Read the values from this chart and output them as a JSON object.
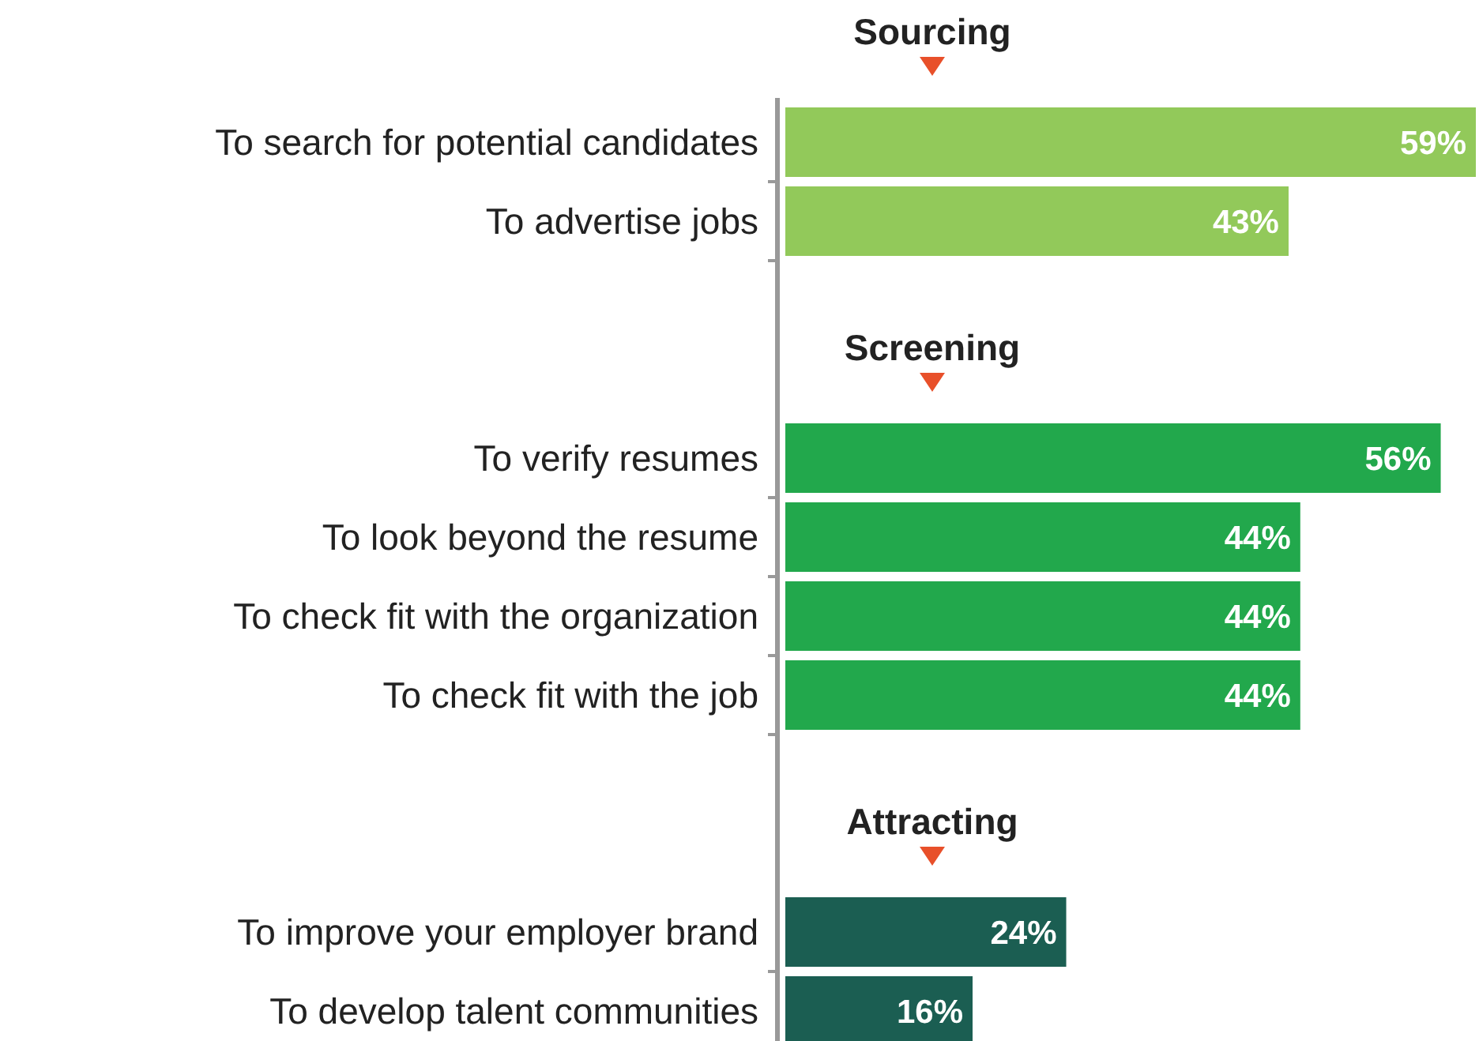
{
  "chart_data": {
    "type": "bar",
    "orientation": "horizontal",
    "categories": [
      null,
      "To search for potential candidates",
      "To advertise jobs",
      null,
      null,
      "To verify resumes",
      "To look beyond the resume",
      "To check fit with the organization",
      "To check fit with the job",
      null,
      null,
      "To improve your employer brand",
      "To develop talent communities"
    ],
    "values": [
      null,
      59,
      43,
      null,
      null,
      56,
      44,
      44,
      44,
      null,
      null,
      24,
      16
    ],
    "value_labels": [
      null,
      "59%",
      "43%",
      null,
      null,
      "56%",
      "44%",
      "44%",
      "44%",
      null,
      null,
      "24%",
      "16%"
    ],
    "colors": [
      null,
      "#92c95a",
      "#92c95a",
      null,
      null,
      "#22a84c",
      "#22a84c",
      "#22a84c",
      "#22a84c",
      null,
      null,
      "#1b5e52",
      "#1b5e52"
    ],
    "annotations": [
      "Sourcing",
      "Screening",
      "Attracting"
    ]
  }
}
